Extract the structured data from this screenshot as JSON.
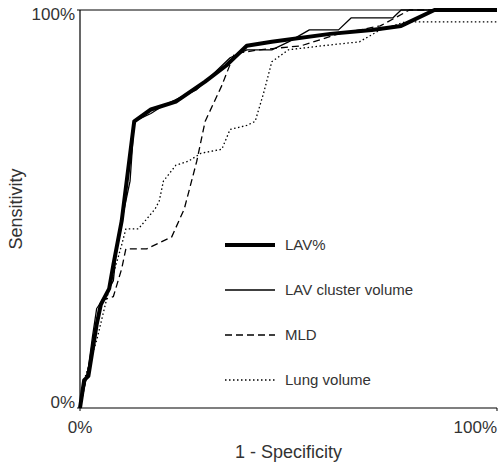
{
  "chart_data": {
    "type": "line",
    "x_label": "1 - Specificity",
    "y_label": "Sensitivity",
    "xlim": [
      0,
      100
    ],
    "ylim": [
      0,
      100
    ],
    "xticks": [
      {
        "value": 0,
        "label": "0%"
      },
      {
        "value": 100,
        "label": "100%"
      }
    ],
    "yticks": [
      {
        "value": 0,
        "label": "0%"
      },
      {
        "value": 100,
        "label": "100%"
      }
    ],
    "grid": false,
    "legend": "lower right",
    "series": [
      {
        "name": "LAV%",
        "color": "#000000",
        "line_style": "thick",
        "x": [
          0,
          1,
          2,
          4,
          5,
          7,
          8,
          10,
          13,
          17,
          23,
          30,
          35,
          40,
          46,
          60,
          70,
          77,
          85,
          100
        ],
        "values": [
          0,
          7,
          8,
          21,
          26,
          30,
          36,
          47,
          72,
          75,
          77,
          82,
          86,
          91,
          92,
          94,
          95,
          96,
          100,
          100
        ]
      },
      {
        "name": "LAV cluster volume",
        "color": "#000000",
        "line_style": "solid",
        "x": [
          0,
          1,
          2,
          3,
          4,
          6,
          8,
          9,
          10,
          12,
          13,
          17,
          20,
          24,
          28,
          32,
          36,
          40,
          46,
          50,
          55,
          62,
          65,
          75,
          77,
          100
        ],
        "values": [
          0,
          5,
          10,
          18,
          25,
          28,
          32,
          42,
          47,
          57,
          72,
          74,
          76,
          78,
          80,
          84,
          88,
          90,
          90,
          92,
          95,
          95,
          98,
          98,
          100,
          100
        ]
      },
      {
        "name": "MLD",
        "color": "#000000",
        "line_style": "dashed",
        "x": [
          0,
          2,
          4,
          5,
          8,
          10,
          11,
          16,
          22,
          25,
          28,
          30,
          34,
          37,
          43,
          53,
          62,
          72,
          79,
          100
        ],
        "values": [
          0,
          10,
          20,
          27,
          28,
          35,
          40,
          40,
          43,
          50,
          62,
          72,
          81,
          89,
          90,
          91,
          94,
          96,
          100,
          100
        ]
      },
      {
        "name": "Lung volume",
        "color": "#000000",
        "line_style": "dotted",
        "x": [
          0,
          1,
          4,
          7,
          10,
          11,
          14,
          18,
          19,
          20,
          23,
          26,
          29,
          34,
          36,
          40,
          42,
          44,
          46,
          50,
          58,
          67,
          72,
          78,
          85,
          100
        ],
        "values": [
          0,
          7,
          17,
          30,
          41,
          45,
          45,
          50,
          52,
          57,
          61,
          62,
          64,
          65,
          70,
          71,
          72,
          79,
          87,
          90,
          91,
          92,
          95,
          97,
          97,
          97
        ]
      }
    ]
  }
}
